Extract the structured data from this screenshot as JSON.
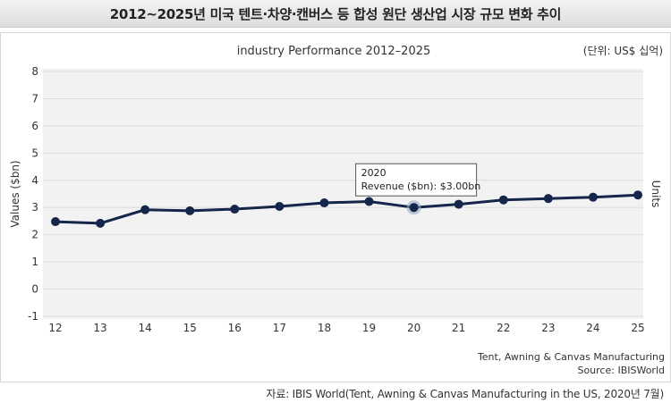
{
  "header": {
    "title": "2012~2025년 미국 텐트·차양·캔버스 등 합성 원단 생산업 시장 규모 변화 추이"
  },
  "chart_data": {
    "type": "line",
    "title": "industry Performance 2012–2025",
    "unit_note": "(단위: US$ 십억)",
    "ylabel": "Values ($bn)",
    "y2label": "Units",
    "ylim": [
      -1,
      8
    ],
    "yticks": [
      -1,
      0,
      1,
      2,
      3,
      4,
      5,
      6,
      7,
      8
    ],
    "grid": true,
    "categories": [
      "12",
      "13",
      "14",
      "15",
      "16",
      "17",
      "18",
      "19",
      "20",
      "21",
      "22",
      "23",
      "24",
      "25"
    ],
    "series": [
      {
        "name": "Revenue ($bn)",
        "color": "#15264a",
        "values": [
          2.48,
          2.42,
          2.92,
          2.88,
          2.94,
          3.04,
          3.17,
          3.22,
          3.0,
          3.12,
          3.28,
          3.33,
          3.38,
          3.46
        ]
      }
    ],
    "tooltip": {
      "year": "2020",
      "text": "Revenue ($bn): $3.00bn",
      "index": 8
    },
    "footnote_1": "Tent, Awning & Canvas Manufacturing",
    "footnote_2": "Source: IBISWorld"
  },
  "footer": {
    "source": "자료: IBIS World(Tent, Awning & Canvas Manufacturing in the US, 2020년 7월)"
  }
}
